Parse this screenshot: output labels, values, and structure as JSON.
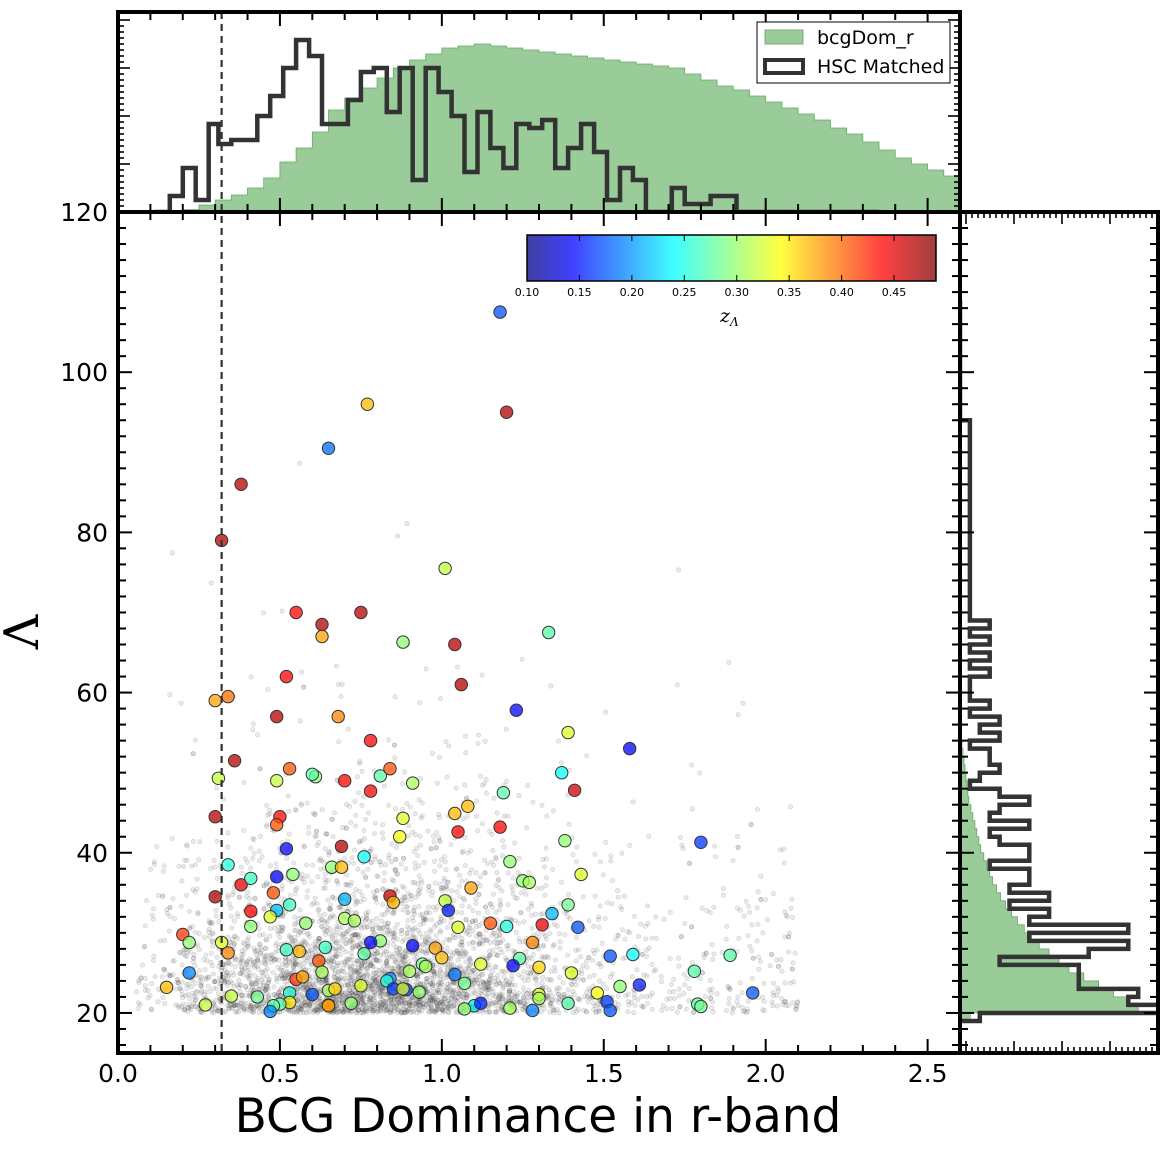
{
  "chart_data": {
    "type": "scatter",
    "xlabel": "BCG Dominance in r-band",
    "ylabel": "Λ",
    "xlim": [
      0.0,
      2.6
    ],
    "ylim": [
      15,
      120
    ],
    "x_ticks": [
      "0.0",
      "0.5",
      "1.0",
      "1.5",
      "2.0",
      "2.5"
    ],
    "y_ticks": [
      "20",
      "40",
      "60",
      "80",
      "100",
      "120"
    ],
    "vline_x": 0.32,
    "colorbar": {
      "label": "z",
      "label_sub": "Λ",
      "range": [
        0.1,
        0.49
      ],
      "ticks": [
        "0.10",
        "0.15",
        "0.20",
        "0.25",
        "0.30",
        "0.35",
        "0.40",
        "0.45"
      ],
      "colormap": "jet"
    },
    "legend": {
      "placement": "top-right of top histogram",
      "entries": [
        {
          "label": "bcgDom_r",
          "style": "filled",
          "color": "#99cc99"
        },
        {
          "label": "HSC Matched",
          "style": "step",
          "color": "#333333"
        }
      ]
    },
    "background_points": {
      "description": "dense cloud of gray points",
      "color": "#333333"
    },
    "matched_points": [
      [
        1.18,
        107.5,
        0.18
      ],
      [
        0.77,
        96,
        0.37
      ],
      [
        1.2,
        95,
        0.47
      ],
      [
        0.65,
        90.5,
        0.19
      ],
      [
        0.38,
        86,
        0.47
      ],
      [
        0.32,
        79,
        0.47
      ],
      [
        1.01,
        75.5,
        0.32
      ],
      [
        0.55,
        70,
        0.44
      ],
      [
        0.75,
        70,
        0.47
      ],
      [
        0.63,
        68.5,
        0.47
      ],
      [
        1.33,
        67.5,
        0.28
      ],
      [
        0.63,
        67,
        0.38
      ],
      [
        0.88,
        66.3,
        0.3
      ],
      [
        1.04,
        66,
        0.47
      ],
      [
        0.52,
        62,
        0.44
      ],
      [
        1.06,
        61,
        0.47
      ],
      [
        0.34,
        59.5,
        0.4
      ],
      [
        0.3,
        59,
        0.38
      ],
      [
        1.23,
        57.8,
        0.15
      ],
      [
        0.49,
        57,
        0.47
      ],
      [
        0.68,
        57,
        0.39
      ],
      [
        1.39,
        55,
        0.33
      ],
      [
        0.78,
        54,
        0.44
      ],
      [
        1.58,
        53,
        0.15
      ],
      [
        0.36,
        51.5,
        0.47
      ],
      [
        0.53,
        50.5,
        0.41
      ],
      [
        0.61,
        49.5,
        0.3
      ],
      [
        1.37,
        50,
        0.25
      ],
      [
        0.31,
        49.3,
        0.32
      ],
      [
        0.6,
        49.8,
        0.28
      ],
      [
        0.81,
        49.6,
        0.28
      ],
      [
        0.49,
        49,
        0.32
      ],
      [
        0.7,
        49,
        0.44
      ],
      [
        0.84,
        50.5,
        0.41
      ],
      [
        0.91,
        48.7,
        0.31
      ],
      [
        1.19,
        47.5,
        0.28
      ],
      [
        0.78,
        47.7,
        0.44
      ],
      [
        1.41,
        47.8,
        0.46
      ],
      [
        1.08,
        45.8,
        0.37
      ],
      [
        1.04,
        44.9,
        0.37
      ],
      [
        0.3,
        44.5,
        0.47
      ],
      [
        0.5,
        44.5,
        0.44
      ],
      [
        0.88,
        44.3,
        0.33
      ],
      [
        0.49,
        43.5,
        0.41
      ],
      [
        1.18,
        43.2,
        0.44
      ],
      [
        1.05,
        42.6,
        0.44
      ],
      [
        0.87,
        42,
        0.34
      ],
      [
        1.38,
        41.5,
        0.3
      ],
      [
        1.8,
        41.3,
        0.17
      ],
      [
        0.69,
        40.8,
        0.47
      ],
      [
        0.52,
        40.5,
        0.15
      ],
      [
        0.76,
        39.5,
        0.25
      ],
      [
        1.21,
        38.9,
        0.3
      ],
      [
        0.34,
        38.5,
        0.26
      ],
      [
        0.66,
        38.2,
        0.3
      ],
      [
        0.69,
        38.2,
        0.37
      ],
      [
        1.43,
        37.3,
        0.33
      ],
      [
        0.54,
        37.3,
        0.3
      ],
      [
        0.49,
        37,
        0.15
      ],
      [
        1.25,
        36.5,
        0.3
      ],
      [
        1.27,
        36.3,
        0.31
      ],
      [
        0.38,
        36,
        0.45
      ],
      [
        1.09,
        35.6,
        0.38
      ],
      [
        0.41,
        36.8,
        0.27
      ],
      [
        0.48,
        35,
        0.41
      ],
      [
        0.84,
        34.6,
        0.46
      ],
      [
        0.85,
        33.8,
        0.37
      ],
      [
        0.3,
        34.5,
        0.47
      ],
      [
        0.7,
        34.2,
        0.22
      ],
      [
        1.01,
        34,
        0.32
      ],
      [
        0.53,
        33.5,
        0.27
      ],
      [
        1.39,
        33.5,
        0.29
      ],
      [
        0.41,
        32.7,
        0.44
      ],
      [
        0.49,
        32.8,
        0.22
      ],
      [
        1.02,
        32.8,
        0.16
      ],
      [
        1.34,
        32.4,
        0.22
      ],
      [
        0.47,
        32,
        0.33
      ],
      [
        0.7,
        31.8,
        0.31
      ],
      [
        0.73,
        31.5,
        0.31
      ],
      [
        0.58,
        31.2,
        0.3
      ],
      [
        1.15,
        31.2,
        0.41
      ],
      [
        1.31,
        31,
        0.45
      ],
      [
        0.41,
        30.8,
        0.3
      ],
      [
        1.2,
        30.8,
        0.26
      ],
      [
        1.42,
        30.7,
        0.18
      ],
      [
        1.05,
        30.7,
        0.33
      ],
      [
        0.2,
        29.8,
        0.42
      ],
      [
        0.81,
        29,
        0.3
      ],
      [
        0.22,
        28.8,
        0.3
      ],
      [
        0.32,
        28.8,
        0.33
      ],
      [
        1.28,
        28.8,
        0.39
      ],
      [
        0.78,
        28.8,
        0.15
      ],
      [
        0.91,
        28.4,
        0.15
      ],
      [
        0.64,
        28.2,
        0.27
      ],
      [
        0.52,
        27.9,
        0.27
      ],
      [
        0.56,
        27.7,
        0.37
      ],
      [
        0.98,
        28.1,
        0.38
      ],
      [
        0.34,
        27.5,
        0.39
      ],
      [
        0.76,
        27.4,
        0.28
      ],
      [
        1.59,
        27.3,
        0.25
      ],
      [
        1.52,
        27.1,
        0.18
      ],
      [
        1.89,
        27.2,
        0.28
      ],
      [
        1.24,
        26.8,
        0.28
      ],
      [
        0.62,
        26.5,
        0.41
      ],
      [
        1.0,
        26.9,
        0.37
      ],
      [
        1.22,
        25.9,
        0.15
      ],
      [
        0.94,
        26.1,
        0.29
      ],
      [
        0.95,
        25.8,
        0.31
      ],
      [
        1.12,
        26.1,
        0.33
      ],
      [
        1.3,
        25.7,
        0.36
      ],
      [
        0.9,
        25.2,
        0.31
      ],
      [
        0.63,
        25.1,
        0.31
      ],
      [
        1.4,
        25,
        0.33
      ],
      [
        1.04,
        24.8,
        0.19
      ],
      [
        0.55,
        24.2,
        0.42
      ],
      [
        0.57,
        24.5,
        0.38
      ],
      [
        0.84,
        24.3,
        0.2
      ],
      [
        0.83,
        24,
        0.26
      ],
      [
        1.78,
        25.2,
        0.28
      ],
      [
        1.07,
        23.7,
        0.29
      ],
      [
        1.61,
        23.5,
        0.16
      ],
      [
        0.75,
        23.4,
        0.33
      ],
      [
        0.15,
        23.2,
        0.37
      ],
      [
        0.85,
        23,
        0.17
      ],
      [
        0.89,
        22.9,
        0.17
      ],
      [
        0.22,
        25,
        0.2
      ],
      [
        0.65,
        22.8,
        0.31
      ],
      [
        0.53,
        22.5,
        0.26
      ],
      [
        0.6,
        22.3,
        0.18
      ],
      [
        1.48,
        22.5,
        0.34
      ],
      [
        1.96,
        22.5,
        0.18
      ],
      [
        0.35,
        22.1,
        0.32
      ],
      [
        1.3,
        22.3,
        0.33
      ],
      [
        0.43,
        22,
        0.29
      ],
      [
        1.3,
        21.8,
        0.31
      ],
      [
        0.53,
        21.3,
        0.35
      ],
      [
        0.27,
        21,
        0.32
      ],
      [
        0.5,
        21.1,
        0.28
      ],
      [
        0.65,
        21,
        0.39
      ],
      [
        0.48,
        20.9,
        0.28
      ],
      [
        1.1,
        20.9,
        0.24
      ],
      [
        1.51,
        21.4,
        0.17
      ],
      [
        1.39,
        21.2,
        0.28
      ],
      [
        1.79,
        21.1,
        0.28
      ],
      [
        1.8,
        20.8,
        0.29
      ],
      [
        1.12,
        21.2,
        0.16
      ],
      [
        1.21,
        20.6,
        0.31
      ],
      [
        1.28,
        20.3,
        0.2
      ],
      [
        1.07,
        20.5,
        0.3
      ],
      [
        0.47,
        20.2,
        0.2
      ],
      [
        1.52,
        20.3,
        0.18
      ],
      [
        0.65,
        20.9,
        0.38
      ],
      [
        0.72,
        21.2,
        0.3
      ],
      [
        1.55,
        23.3,
        0.3
      ],
      [
        0.93,
        22.6,
        0.3
      ],
      [
        0.88,
        23,
        0.33
      ],
      [
        0.67,
        23,
        0.36
      ]
    ],
    "top_histogram": {
      "x_edges_start": 0.0,
      "bin_width": 0.05,
      "bcgDom_r_counts": [
        0,
        0,
        0,
        0.3,
        1.2,
        3.5,
        6,
        8.5,
        12,
        17,
        25,
        32,
        40,
        51,
        57,
        62,
        67,
        72,
        76,
        79,
        82,
        83,
        84,
        83,
        82,
        81,
        80,
        79,
        78,
        77,
        76,
        75,
        74,
        73,
        72,
        69,
        66,
        63,
        61,
        58,
        55,
        52,
        49,
        46,
        42,
        39,
        35,
        31,
        27,
        24,
        21,
        18,
        15,
        12,
        10,
        8,
        6,
        4.5,
        3,
        2,
        1.3,
        0.8,
        0.5,
        0.3,
        0.1
      ],
      "hsc_matched_counts": [
        null,
        null,
        null,
        0,
        0,
        0,
        0,
        0,
        0,
        0,
        0,
        0,
        0,
        0,
        0,
        0,
        0,
        0,
        0,
        0,
        0,
        0,
        0,
        0,
        0,
        0,
        0,
        0,
        0,
        0,
        0,
        0,
        0,
        0,
        0,
        0,
        0,
        0,
        0,
        0,
        0,
        0,
        0,
        0,
        0,
        0,
        0,
        0,
        0,
        0,
        0,
        0,
        0,
        0,
        0,
        0,
        0,
        0,
        0,
        0,
        0,
        0,
        0,
        0,
        0
      ],
      "hsc_step_edges": [
        0.11,
        0.16,
        0.2,
        0.24,
        0.28,
        0.31,
        0.35,
        0.39,
        0.43,
        0.47,
        0.51,
        0.55,
        0.59,
        0.63,
        0.67,
        0.71,
        0.75,
        0.79,
        0.83,
        0.87,
        0.91,
        0.95,
        0.99,
        1.03,
        1.07,
        1.11,
        1.15,
        1.19,
        1.23,
        1.27,
        1.31,
        1.35,
        1.39,
        1.43,
        1.47,
        1.51,
        1.55,
        1.59,
        1.63,
        1.67,
        1.71,
        1.75,
        1.79,
        1.83,
        1.87,
        1.91,
        1.95,
        1.99,
        2.03,
        2.07,
        2.11,
        2.15,
        2.19,
        2.23,
        2.27,
        2.31,
        2.35
      ],
      "hsc_step_heights": [
        0,
        8,
        22,
        6,
        44,
        34,
        36,
        36,
        48,
        58,
        72,
        86,
        78,
        44,
        44,
        56,
        70,
        72,
        50,
        72,
        16,
        72,
        60,
        48,
        20,
        50,
        32,
        22,
        44,
        42,
        46,
        22,
        32,
        44,
        30,
        6,
        22,
        16,
        0,
        0,
        12,
        4,
        4,
        8,
        8,
        0,
        0,
        0,
        0,
        0,
        0,
        0,
        0,
        0,
        0,
        0,
        0
      ],
      "ymax": 100
    },
    "right_histogram": {
      "y_edges_start": 20,
      "bin_height": 1,
      "bcgDom_r_counts": [
        18,
        17,
        15.5,
        14,
        12.5,
        11,
        10,
        9,
        8,
        7.2,
        6.5,
        5.8,
        5.2,
        4.6,
        4.1,
        3.7,
        3.3,
        3,
        2.7,
        2.4,
        2.1,
        1.9,
        1.7,
        1.5,
        1.3,
        1.1,
        0.9,
        0.8,
        0.7,
        0.6,
        0.5,
        0.4,
        0.3,
        0.2,
        0.15,
        0.1
      ],
      "hsc_step_edges": [
        19,
        20,
        21,
        22,
        23,
        24,
        25,
        26,
        27,
        28,
        29,
        30,
        31,
        32,
        33,
        34,
        35,
        36,
        37,
        38,
        39,
        40,
        41,
        42,
        43,
        44,
        45,
        46,
        47,
        48,
        49,
        50,
        51,
        52,
        53,
        54,
        55,
        56,
        57,
        58,
        59,
        60,
        61,
        62,
        63,
        64,
        65,
        66,
        67,
        68,
        69,
        70,
        71,
        72,
        73,
        74,
        75,
        76,
        77,
        78,
        79,
        80,
        81,
        82,
        83,
        84,
        85,
        86,
        87,
        88,
        89,
        90,
        91,
        92,
        93,
        94,
        95,
        96,
        97,
        98,
        99,
        100,
        101,
        102,
        103,
        104,
        105,
        106,
        107,
        108,
        109
      ],
      "hsc_step_widths": [
        2,
        24,
        17,
        18,
        12,
        12,
        12,
        4,
        13,
        17,
        7,
        17,
        7,
        9,
        5,
        9,
        5,
        7,
        7,
        3,
        7,
        7,
        4,
        3,
        7,
        3,
        4,
        7,
        4,
        1,
        2,
        4,
        3,
        3,
        1,
        4,
        2,
        4,
        1,
        3,
        1,
        1,
        1,
        3,
        1,
        3,
        1,
        3,
        1,
        3,
        1,
        1,
        1,
        1,
        1,
        1,
        1,
        1,
        1,
        1,
        1,
        1,
        1,
        1,
        1,
        1,
        1,
        1,
        1,
        1,
        1,
        1,
        1,
        1,
        1,
        0,
        0,
        0,
        0,
        0,
        0,
        0,
        0,
        0,
        0,
        0,
        0,
        0,
        0,
        0
      ],
      "xmax": 20
    }
  }
}
